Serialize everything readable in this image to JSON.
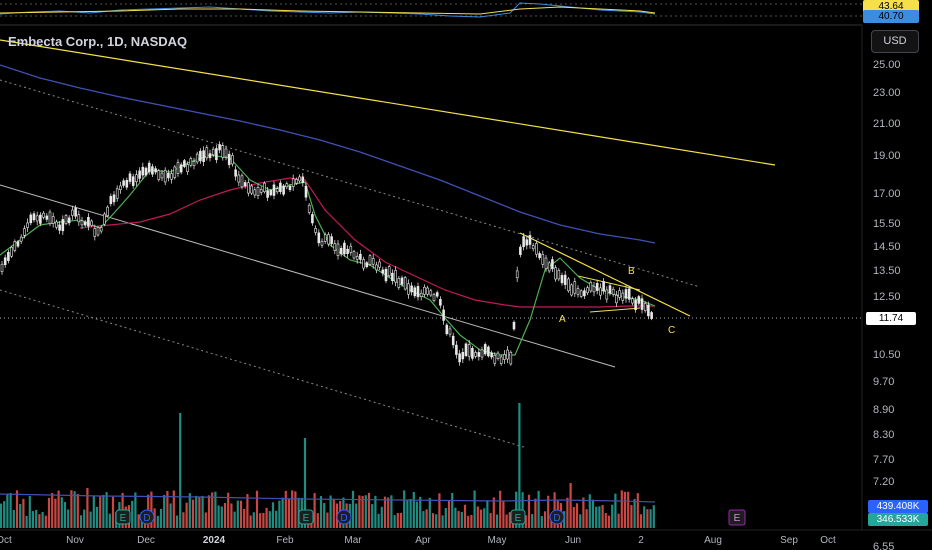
{
  "header": {
    "title": "Embecta Corp., 1D, NASDAQ",
    "currency_button": "USD"
  },
  "rsi": {
    "value_1": "43.64",
    "value_2": "40.70",
    "color_1": "#f5e04c",
    "color_2": "#3a8de0"
  },
  "price_axis": {
    "ticks": [
      "25.00",
      "23.00",
      "21.00",
      "19.00",
      "17.00",
      "15.50",
      "14.50",
      "13.50",
      "12.50",
      "10.50",
      "9.70",
      "8.90",
      "8.30",
      "7.70",
      "7.20",
      "6.55"
    ]
  },
  "last_price": "11.74",
  "volume_labels": {
    "value_1": "439.408K",
    "value_2": "346.533K"
  },
  "time_axis": {
    "labels": [
      "Oct",
      "Nov",
      "Dec",
      "2024",
      "Feb",
      "Mar",
      "Apr",
      "May",
      "Jun",
      "2",
      "Aug",
      "Sep",
      "Oct"
    ]
  },
  "annotations": {
    "a": "A",
    "b": "B",
    "c": "C"
  },
  "events": {
    "earnings": "E",
    "dividend": "D"
  },
  "colors": {
    "up": "#e8e8e8",
    "ma_fast": "#4caf50",
    "ma_mid": "#c2185b",
    "ma_slow": "#3f51b5",
    "trend": "#f5e04c",
    "vol_up": "#26a69a",
    "vol_down": "#ef5350",
    "earn_future": "#9c27b0"
  }
}
